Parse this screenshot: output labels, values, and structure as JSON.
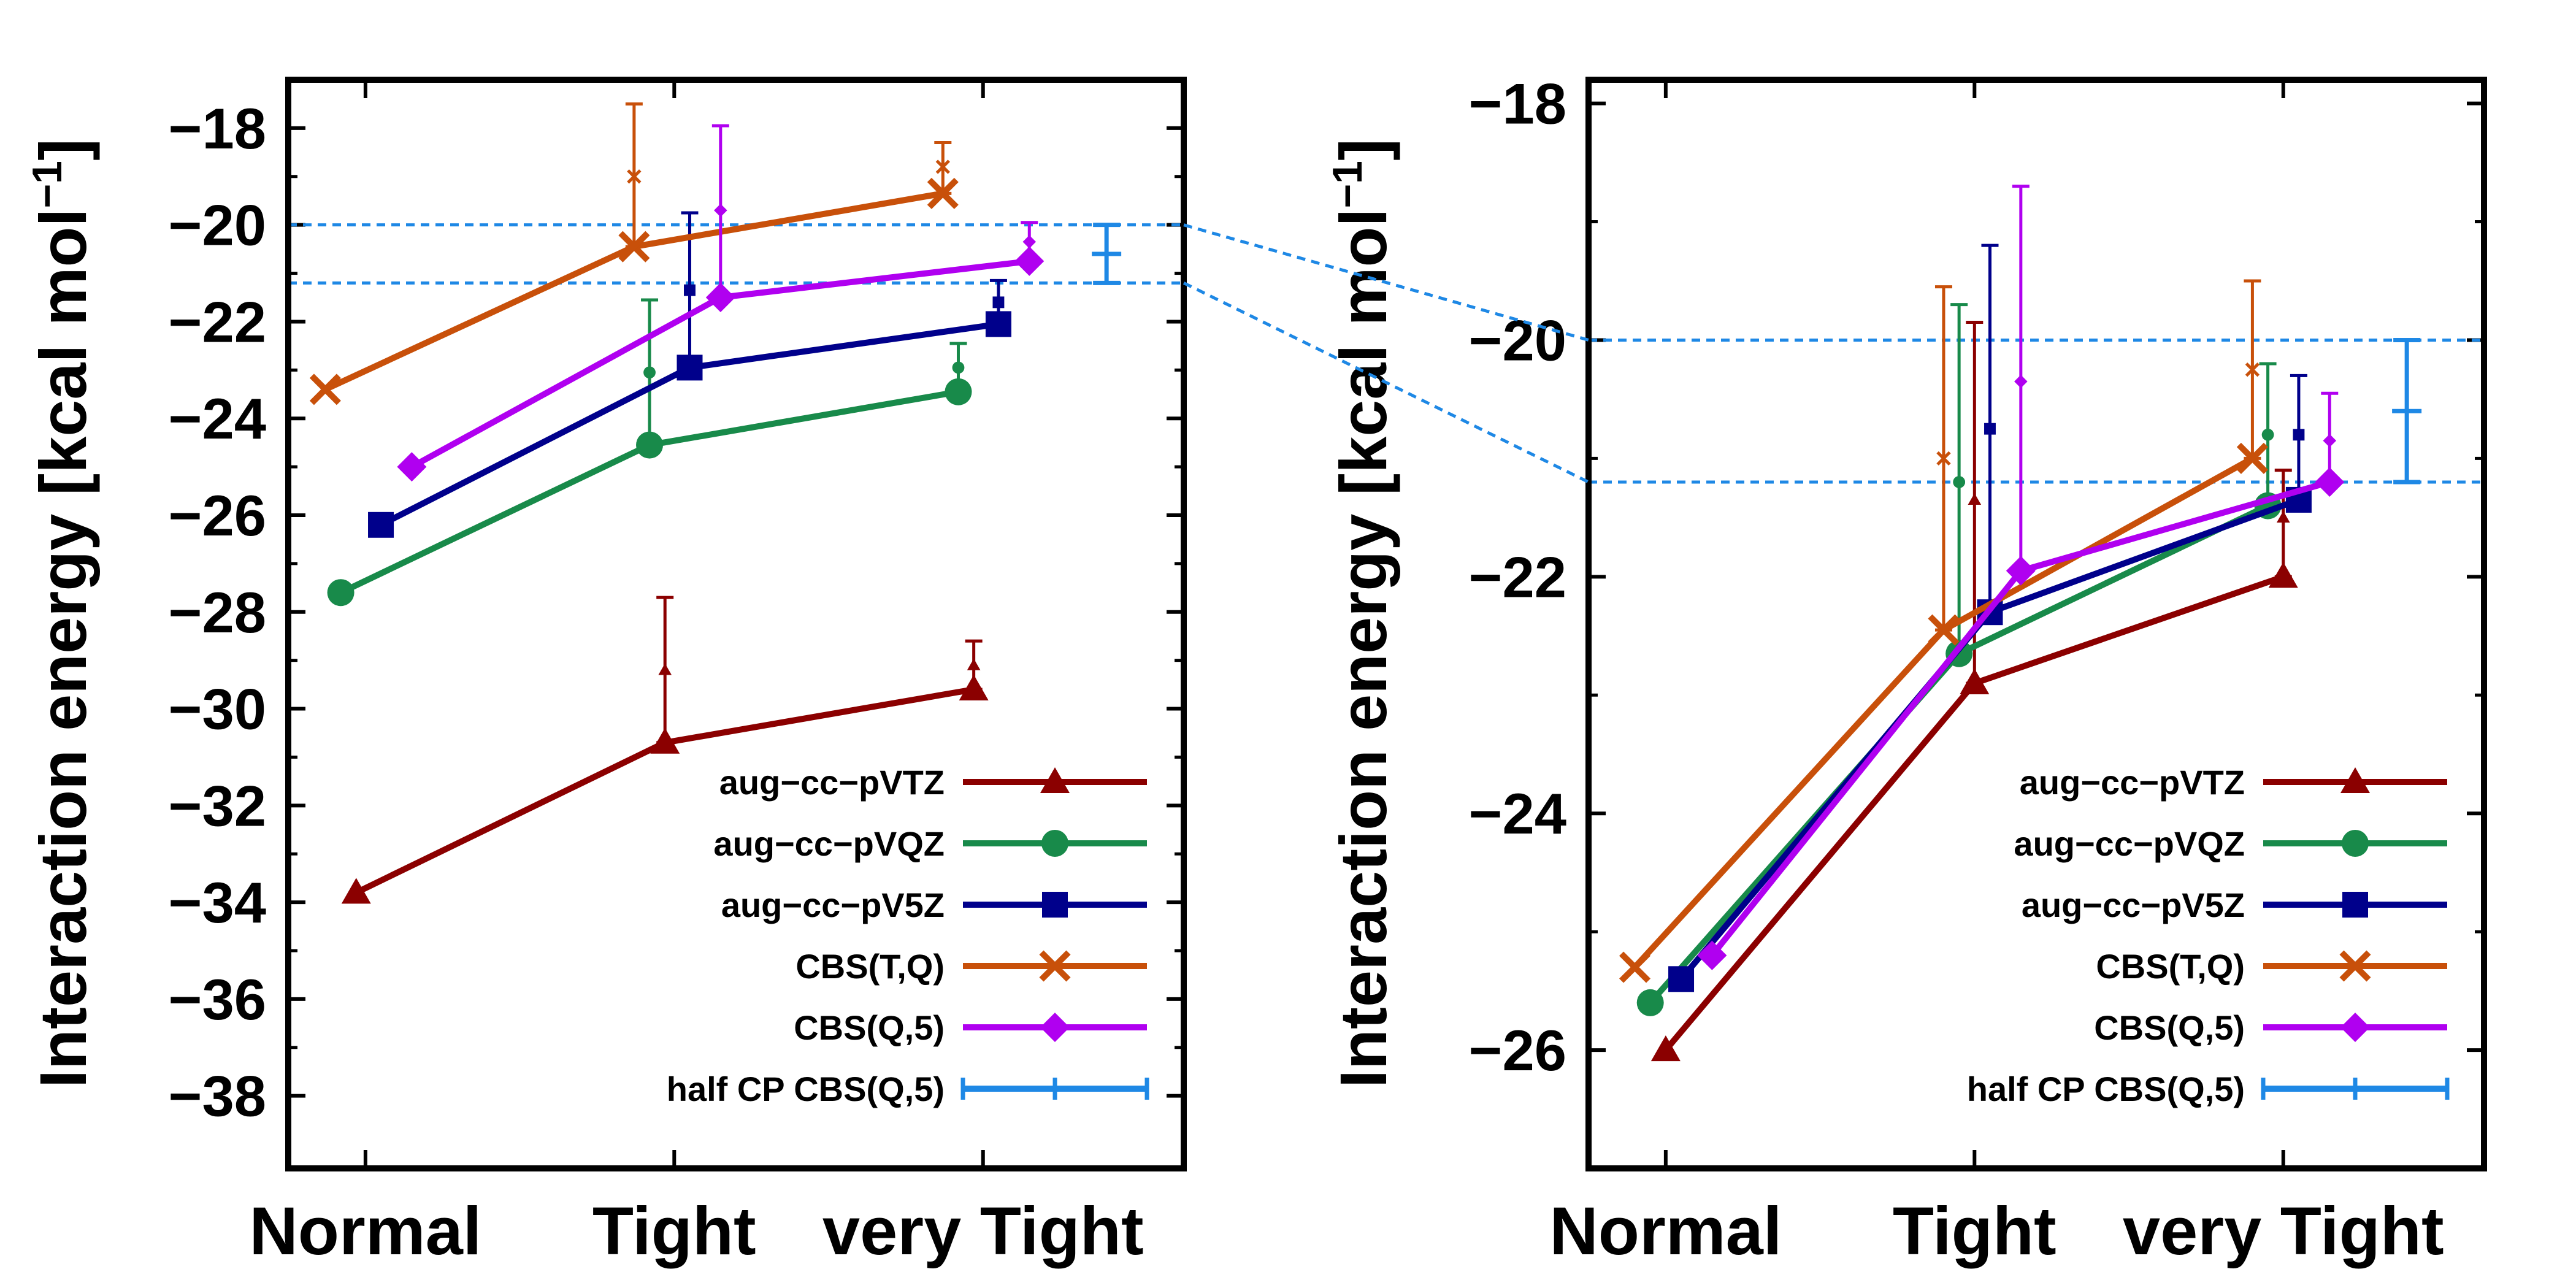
{
  "chart_data": [
    {
      "type": "line",
      "ylabel": "Interaction energy [kcal mol",
      "ylabel_sup": "−1",
      "ylabel_end": "]",
      "ylim": [
        -39.5,
        -17
      ],
      "yticks": [
        -18,
        -20,
        -22,
        -24,
        -26,
        -28,
        -30,
        -32,
        -34,
        -36,
        -38
      ],
      "ytick_labels": [
        "−18",
        "−20",
        "−22",
        "−24",
        "−26",
        "−28",
        "−30",
        "−32",
        "−34",
        "−36",
        "−38"
      ],
      "xlim": [
        0.75,
        3.65
      ],
      "categories": [
        "Normal",
        "Tight",
        "very Tight"
      ],
      "category_positions": [
        1,
        2,
        3
      ],
      "hlines": [
        -20,
        -21.2
      ],
      "series": [
        {
          "name": "aug−cc−pVTZ",
          "color": "#8b0000",
          "marker": "triangle",
          "x": [
            0.97,
            1.97,
            2.97
          ],
          "values": [
            -33.8,
            -30.7,
            -29.6
          ],
          "errorbars": [
            {
              "x": 1.97,
              "center": -29.2,
              "low": -30.7,
              "high": -27.7
            },
            {
              "x": 2.97,
              "center": -29.1,
              "low": -29.6,
              "high": -28.6
            }
          ]
        },
        {
          "name": "aug−cc−pVQZ",
          "color": "#188a4a",
          "marker": "circle",
          "x": [
            0.92,
            1.92,
            2.92
          ],
          "values": [
            -27.6,
            -24.55,
            -23.45
          ],
          "errorbars": [
            {
              "x": 1.92,
              "center": -23.05,
              "low": -24.55,
              "high": -21.55
            },
            {
              "x": 2.92,
              "center": -22.95,
              "low": -23.45,
              "high": -22.45
            }
          ]
        },
        {
          "name": "aug−cc−pV5Z",
          "color": "#00008b",
          "marker": "square",
          "x": [
            1.05,
            2.05,
            3.05
          ],
          "values": [
            -26.2,
            -22.95,
            -22.05
          ],
          "errorbars": [
            {
              "x": 2.05,
              "center": -21.35,
              "low": -22.95,
              "high": -19.75
            },
            {
              "x": 3.05,
              "center": -21.6,
              "low": -22.05,
              "high": -21.15
            }
          ]
        },
        {
          "name": "CBS(T,Q)",
          "color": "#c8500a",
          "marker": "cross",
          "x": [
            0.87,
            1.87,
            2.87
          ],
          "values": [
            -23.4,
            -20.45,
            -19.35
          ],
          "errorbars": [
            {
              "x": 1.87,
              "center": -19.0,
              "low": -20.45,
              "high": -17.5
            },
            {
              "x": 2.87,
              "center": -18.8,
              "low": -19.35,
              "high": -18.3
            }
          ]
        },
        {
          "name": "CBS(Q,5)",
          "color": "#b000f0",
          "marker": "diamond",
          "x": [
            1.15,
            2.15,
            3.15
          ],
          "values": [
            -25.0,
            -21.5,
            -20.75
          ],
          "errorbars": [
            {
              "x": 2.15,
              "center": -19.7,
              "low": -21.5,
              "high": -17.95
            },
            {
              "x": 3.15,
              "center": -20.35,
              "low": -20.75,
              "high": -19.95
            }
          ]
        },
        {
          "name": "half CP CBS(Q,5)",
          "color": "#1e88e5",
          "marker": "errorbar",
          "x": [],
          "values": [],
          "errorbars": [
            {
              "x": 3.4,
              "center": -20.6,
              "low": -21.2,
              "high": -20.0
            }
          ]
        }
      ]
    },
    {
      "type": "line",
      "ylabel": "Interaction energy [kcal mol",
      "ylabel_sup": "−1",
      "ylabel_end": "]",
      "ylim": [
        -27,
        -17.8
      ],
      "yticks": [
        -18,
        -20,
        -22,
        -24,
        -26
      ],
      "ytick_labels": [
        "−18",
        "−20",
        "−22",
        "−24",
        "−26"
      ],
      "xlim": [
        0.75,
        3.65
      ],
      "categories": [
        "Normal",
        "Tight",
        "very Tight"
      ],
      "category_positions": [
        1,
        2,
        3
      ],
      "hlines": [
        -20,
        -21.2
      ],
      "series": [
        {
          "name": "aug−cc−pVTZ",
          "color": "#8b0000",
          "marker": "triangle",
          "x": [
            1.0,
            2.0,
            3.0
          ],
          "values": [
            -26.0,
            -22.9,
            -22.0
          ],
          "errorbars": [
            {
              "x": 2.0,
              "center": -21.35,
              "low": -22.9,
              "high": -19.85
            },
            {
              "x": 3.0,
              "center": -21.5,
              "low": -22.0,
              "high": -21.1
            }
          ]
        },
        {
          "name": "aug−cc−pVQZ",
          "color": "#188a4a",
          "marker": "circle",
          "x": [
            0.95,
            1.95,
            2.95
          ],
          "values": [
            -25.6,
            -22.65,
            -21.4
          ],
          "errorbars": [
            {
              "x": 1.95,
              "center": -21.2,
              "low": -22.65,
              "high": -19.7
            },
            {
              "x": 2.95,
              "center": -20.8,
              "low": -21.4,
              "high": -20.2
            }
          ]
        },
        {
          "name": "aug−cc−pV5Z",
          "color": "#00008b",
          "marker": "square",
          "x": [
            1.05,
            2.05,
            3.05
          ],
          "values": [
            -25.4,
            -22.3,
            -21.35
          ],
          "errorbars": [
            {
              "x": 2.05,
              "center": -20.75,
              "low": -22.3,
              "high": -19.2
            },
            {
              "x": 3.05,
              "center": -20.8,
              "low": -21.35,
              "high": -20.3
            }
          ]
        },
        {
          "name": "CBS(T,Q)",
          "color": "#c8500a",
          "marker": "cross",
          "x": [
            0.9,
            1.9,
            2.9
          ],
          "values": [
            -25.3,
            -22.45,
            -21.0
          ],
          "errorbars": [
            {
              "x": 1.9,
              "center": -21.0,
              "low": -22.45,
              "high": -19.55
            },
            {
              "x": 2.9,
              "center": -20.25,
              "low": -21.0,
              "high": -19.5
            }
          ]
        },
        {
          "name": "CBS(Q,5)",
          "color": "#b000f0",
          "marker": "diamond",
          "x": [
            1.15,
            2.15,
            3.15
          ],
          "values": [
            -25.2,
            -21.95,
            -21.2
          ],
          "errorbars": [
            {
              "x": 2.15,
              "center": -20.35,
              "low": -21.95,
              "high": -18.7
            },
            {
              "x": 3.15,
              "center": -20.85,
              "low": -21.2,
              "high": -20.45
            }
          ]
        },
        {
          "name": "half CP CBS(Q,5)",
          "color": "#1e88e5",
          "marker": "errorbar",
          "x": [],
          "values": [],
          "errorbars": [
            {
              "x": 3.4,
              "center": -20.6,
              "low": -21.2,
              "high": -20.0
            }
          ]
        }
      ]
    }
  ]
}
